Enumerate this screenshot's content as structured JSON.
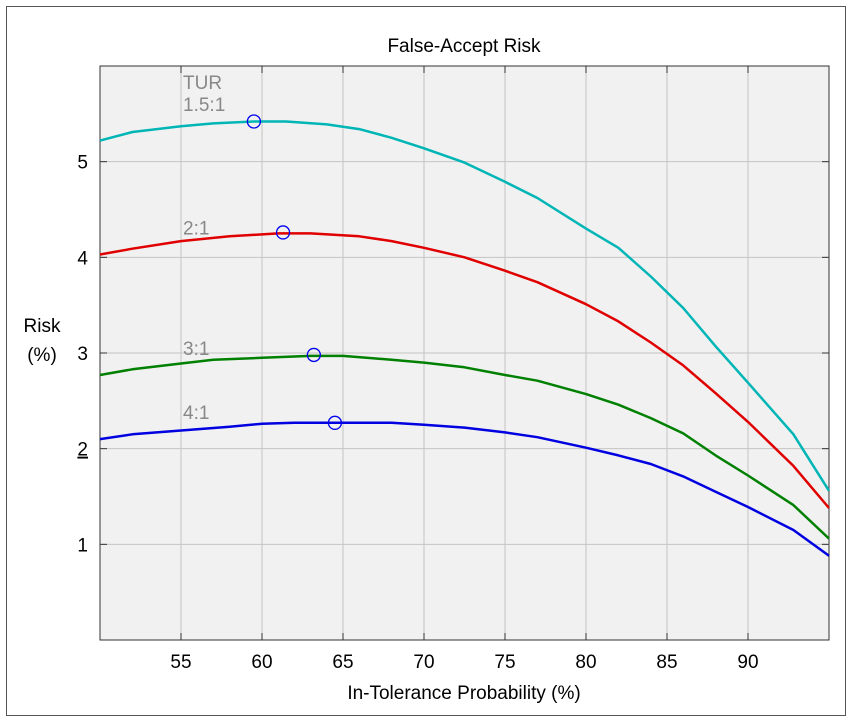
{
  "chart_data": {
    "type": "line",
    "title": "False-Accept Risk",
    "xlabel": "In-Tolerance Probability (%)",
    "ylabel_line1": "Risk",
    "ylabel_line2": "(%)",
    "xlim": [
      50,
      95
    ],
    "ylim": [
      0,
      6
    ],
    "xticks": [
      55,
      60,
      65,
      70,
      75,
      80,
      85,
      90
    ],
    "yticks": [
      1,
      2,
      3,
      4,
      5
    ],
    "underlined_ytick": 2,
    "grid": true,
    "legend_header": "TUR",
    "series": [
      {
        "name": "1.5:1",
        "color": "#00b5b5",
        "x": [
          50,
          52,
          55,
          57,
          59.5,
          61.5,
          64,
          66,
          68,
          70,
          72.5,
          75,
          77,
          80,
          82,
          84,
          86,
          88,
          90,
          92.8,
          95
        ],
        "y": [
          5.22,
          5.31,
          5.37,
          5.4,
          5.42,
          5.42,
          5.39,
          5.34,
          5.25,
          5.14,
          4.99,
          4.79,
          4.62,
          4.3,
          4.1,
          3.8,
          3.47,
          3.07,
          2.69,
          2.15,
          1.56
        ],
        "marker": {
          "x": 59.5,
          "y": 5.42
        }
      },
      {
        "name": "2:1",
        "color": "#e00000",
        "x": [
          50,
          52,
          55,
          58,
          61,
          63,
          66,
          68,
          70,
          72.5,
          75,
          77,
          80,
          82,
          84,
          86,
          88,
          90,
          92.8,
          95
        ],
        "y": [
          4.03,
          4.09,
          4.17,
          4.22,
          4.25,
          4.25,
          4.22,
          4.17,
          4.1,
          4.0,
          3.86,
          3.74,
          3.51,
          3.33,
          3.11,
          2.87,
          2.58,
          2.28,
          1.82,
          1.38
        ],
        "marker": {
          "x": 61.3,
          "y": 4.26
        }
      },
      {
        "name": "3:1",
        "color": "#008000",
        "x": [
          50,
          52,
          55,
          57,
          60,
          63,
          65,
          68,
          70,
          72.5,
          75,
          77,
          80,
          82,
          84,
          86,
          88,
          90,
          92.8,
          95
        ],
        "y": [
          2.77,
          2.83,
          2.89,
          2.93,
          2.95,
          2.97,
          2.97,
          2.93,
          2.9,
          2.85,
          2.77,
          2.71,
          2.57,
          2.46,
          2.32,
          2.16,
          1.93,
          1.72,
          1.41,
          1.06
        ],
        "marker": {
          "x": 63.2,
          "y": 2.98
        }
      },
      {
        "name": "4:1",
        "color": "#0000e0",
        "x": [
          50,
          52,
          55,
          58,
          60,
          62,
          65,
          68,
          70,
          72.5,
          75,
          77,
          80,
          82,
          84,
          86,
          88,
          90,
          92.8,
          95
        ],
        "y": [
          2.1,
          2.15,
          2.19,
          2.23,
          2.26,
          2.27,
          2.27,
          2.27,
          2.25,
          2.22,
          2.17,
          2.12,
          2.01,
          1.93,
          1.84,
          1.71,
          1.55,
          1.39,
          1.15,
          0.88
        ],
        "marker": {
          "x": 64.5,
          "y": 2.27
        }
      }
    ]
  }
}
